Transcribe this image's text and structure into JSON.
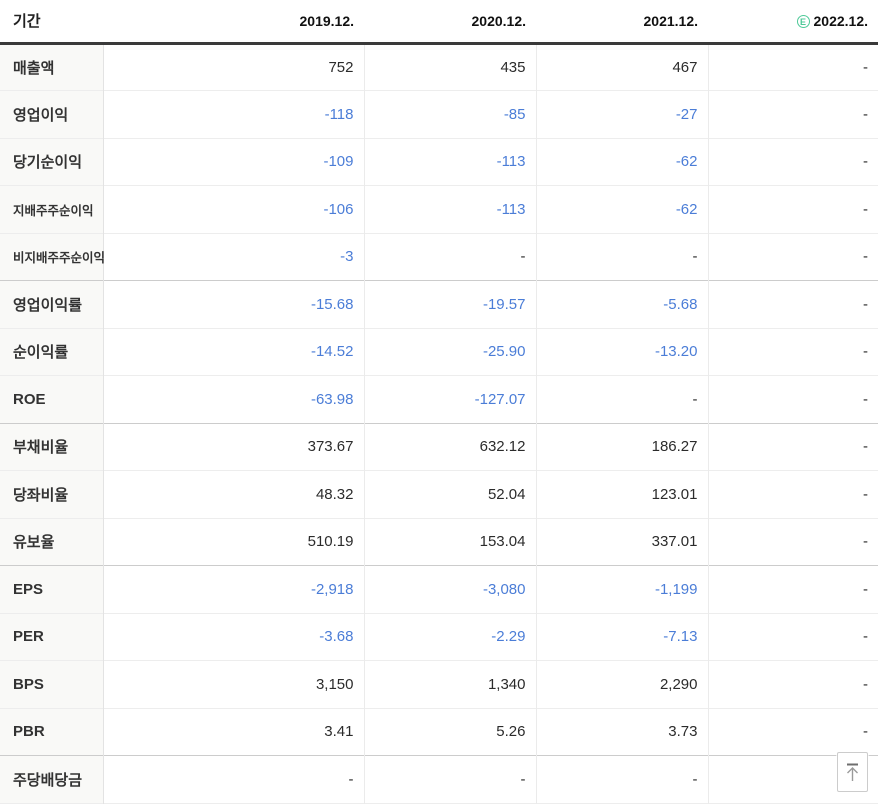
{
  "table": {
    "header": {
      "period_label": "기간",
      "columns": [
        "2019.12.",
        "2020.12.",
        "2021.12.",
        "2022.12."
      ],
      "estimate_badge": "E",
      "estimate_column_index": 3
    },
    "rows": [
      {
        "label": "매출액",
        "sub": false,
        "group_end": false,
        "values": [
          "752",
          "435",
          "467",
          "-"
        ]
      },
      {
        "label": "영업이익",
        "sub": false,
        "group_end": false,
        "values": [
          "-118",
          "-85",
          "-27",
          "-"
        ]
      },
      {
        "label": "당기순이익",
        "sub": false,
        "group_end": false,
        "values": [
          "-109",
          "-113",
          "-62",
          "-"
        ]
      },
      {
        "label": "지배주주순이익",
        "sub": true,
        "group_end": false,
        "values": [
          "-106",
          "-113",
          "-62",
          "-"
        ]
      },
      {
        "label": "비지배주주순이익",
        "sub": true,
        "group_end": true,
        "values": [
          "-3",
          "-",
          "-",
          "-"
        ]
      },
      {
        "label": "영업이익률",
        "sub": false,
        "group_end": false,
        "values": [
          "-15.68",
          "-19.57",
          "-5.68",
          "-"
        ]
      },
      {
        "label": "순이익률",
        "sub": false,
        "group_end": false,
        "values": [
          "-14.52",
          "-25.90",
          "-13.20",
          "-"
        ]
      },
      {
        "label": "ROE",
        "sub": false,
        "group_end": true,
        "values": [
          "-63.98",
          "-127.07",
          "-",
          "-"
        ]
      },
      {
        "label": "부채비율",
        "sub": false,
        "group_end": false,
        "values": [
          "373.67",
          "632.12",
          "186.27",
          "-"
        ]
      },
      {
        "label": "당좌비율",
        "sub": false,
        "group_end": false,
        "values": [
          "48.32",
          "52.04",
          "123.01",
          "-"
        ]
      },
      {
        "label": "유보율",
        "sub": false,
        "group_end": true,
        "values": [
          "510.19",
          "153.04",
          "337.01",
          "-"
        ]
      },
      {
        "label": "EPS",
        "sub": false,
        "group_end": false,
        "values": [
          "-2,918",
          "-3,080",
          "-1,199",
          "-"
        ]
      },
      {
        "label": "PER",
        "sub": false,
        "group_end": false,
        "values": [
          "-3.68",
          "-2.29",
          "-7.13",
          "-"
        ]
      },
      {
        "label": "BPS",
        "sub": false,
        "group_end": false,
        "values": [
          "3,150",
          "1,340",
          "2,290",
          "-"
        ]
      },
      {
        "label": "PBR",
        "sub": false,
        "group_end": true,
        "values": [
          "3.41",
          "5.26",
          "3.73",
          "-"
        ]
      },
      {
        "label": "주당배당금",
        "sub": false,
        "group_end": false,
        "values": [
          "-",
          "-",
          "-",
          "-"
        ]
      }
    ]
  },
  "colors": {
    "negative_value": "#4b7dd7",
    "estimate_green": "#4ec998",
    "header_rule": "#3a3a3a"
  },
  "scroll_top_button": {
    "icon": "arrow-up-to-line"
  }
}
